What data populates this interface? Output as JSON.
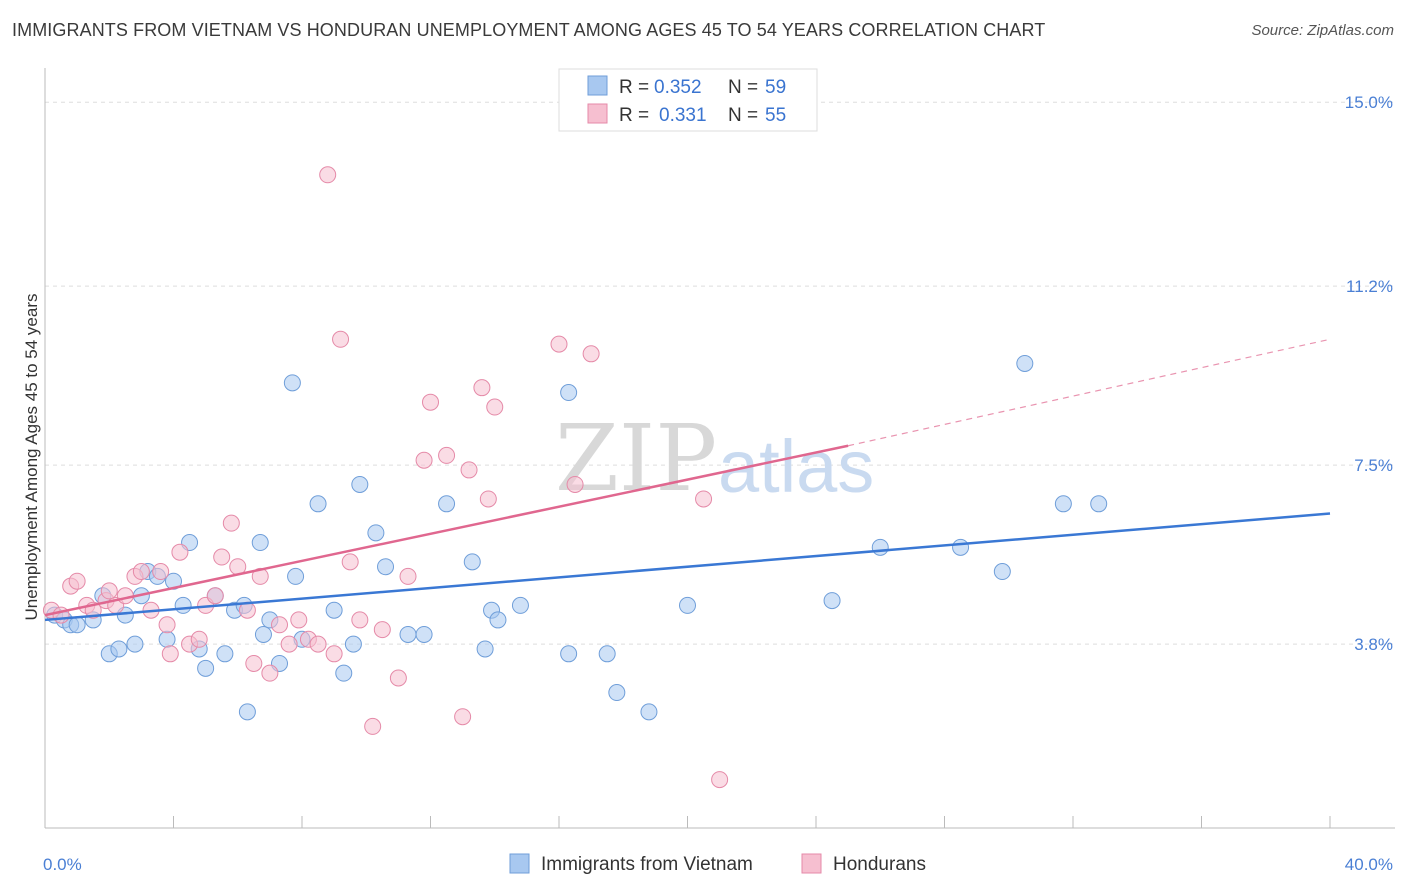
{
  "header": {
    "title": "IMMIGRANTS FROM VIETNAM VS HONDURAN UNEMPLOYMENT AMONG AGES 45 TO 54 YEARS CORRELATION CHART",
    "source": "Source: ZipAtlas.com"
  },
  "watermark": {
    "zip": "ZIP",
    "atlas": "atlas"
  },
  "legend": {
    "r_label": "R =",
    "n_label": "N =",
    "rows": [
      {
        "name": "Immigrants from Vietnam",
        "r": "0.352",
        "n": "59",
        "color": "#a8c8f0",
        "stroke": "#6f9ed9"
      },
      {
        "name": "Hondurans",
        "r": "0.331",
        "n": "55",
        "color": "#f6bfd0",
        "stroke": "#e58aa8"
      }
    ]
  },
  "chart_data": {
    "type": "scatter",
    "ylabel": "Unemployment Among Ages 45 to 54 years",
    "xlabel": "",
    "xlim": [
      0,
      40
    ],
    "ylim": [
      0,
      15.5
    ],
    "x_tick_labels": [
      "0.0%",
      "40.0%"
    ],
    "y_ticks": [
      {
        "value": 3.8,
        "label": "3.8%"
      },
      {
        "value": 7.5,
        "label": "7.5%"
      },
      {
        "value": 11.2,
        "label": "11.2%"
      },
      {
        "value": 15.0,
        "label": "15.0%"
      }
    ],
    "grid": true,
    "series": [
      {
        "name": "Immigrants from Vietnam",
        "color": "#a8c8f0",
        "stroke": "#6f9ed9",
        "trend": {
          "x0": 0,
          "y0": 4.3,
          "x1": 40,
          "y1": 6.5,
          "dashed_from": null,
          "color": "#3a78d4"
        },
        "points": [
          [
            0.3,
            4.4
          ],
          [
            0.6,
            4.3
          ],
          [
            0.8,
            4.2
          ],
          [
            1.0,
            4.2
          ],
          [
            1.5,
            4.3
          ],
          [
            1.8,
            4.8
          ],
          [
            2.0,
            3.6
          ],
          [
            2.3,
            3.7
          ],
          [
            2.5,
            4.4
          ],
          [
            2.8,
            3.8
          ],
          [
            3.0,
            4.8
          ],
          [
            3.2,
            5.3
          ],
          [
            3.5,
            5.2
          ],
          [
            3.8,
            3.9
          ],
          [
            4.0,
            5.1
          ],
          [
            4.3,
            4.6
          ],
          [
            4.5,
            5.9
          ],
          [
            4.8,
            3.7
          ],
          [
            5.0,
            3.3
          ],
          [
            5.3,
            4.8
          ],
          [
            5.6,
            3.6
          ],
          [
            5.9,
            4.5
          ],
          [
            6.2,
            4.6
          ],
          [
            6.3,
            2.4
          ],
          [
            6.7,
            5.9
          ],
          [
            6.8,
            4.0
          ],
          [
            7.0,
            4.3
          ],
          [
            7.3,
            3.4
          ],
          [
            7.7,
            9.2
          ],
          [
            7.8,
            5.2
          ],
          [
            8.0,
            3.9
          ],
          [
            8.5,
            6.7
          ],
          [
            9.0,
            4.5
          ],
          [
            9.3,
            3.2
          ],
          [
            9.6,
            3.8
          ],
          [
            9.8,
            7.1
          ],
          [
            10.3,
            6.1
          ],
          [
            10.6,
            5.4
          ],
          [
            11.3,
            4.0
          ],
          [
            11.8,
            4.0
          ],
          [
            12.5,
            6.7
          ],
          [
            13.3,
            5.5
          ],
          [
            13.7,
            3.7
          ],
          [
            13.9,
            4.5
          ],
          [
            14.1,
            4.3
          ],
          [
            14.8,
            4.6
          ],
          [
            16.3,
            9.0
          ],
          [
            16.3,
            3.6
          ],
          [
            17.5,
            3.6
          ],
          [
            17.8,
            2.8
          ],
          [
            18.8,
            2.4
          ],
          [
            20.0,
            4.6
          ],
          [
            24.5,
            4.7
          ],
          [
            26.0,
            5.8
          ],
          [
            28.5,
            5.8
          ],
          [
            29.8,
            5.3
          ],
          [
            30.5,
            9.6
          ],
          [
            31.7,
            6.7
          ],
          [
            32.8,
            6.7
          ]
        ]
      },
      {
        "name": "Hondurans",
        "color": "#f6bfd0",
        "stroke": "#e58aa8",
        "trend": {
          "x0": 0,
          "y0": 4.4,
          "x1": 25.0,
          "y1": 7.9,
          "dashed_to": 40,
          "dashed_y": 10.1,
          "color": "#e0678f"
        },
        "points": [
          [
            0.2,
            4.5
          ],
          [
            0.5,
            4.4
          ],
          [
            0.8,
            5.0
          ],
          [
            1.0,
            5.1
          ],
          [
            1.3,
            4.6
          ],
          [
            1.5,
            4.5
          ],
          [
            1.9,
            4.7
          ],
          [
            2.2,
            4.6
          ],
          [
            2.5,
            4.8
          ],
          [
            2.8,
            5.2
          ],
          [
            3.0,
            5.3
          ],
          [
            3.3,
            4.5
          ],
          [
            3.6,
            5.3
          ],
          [
            3.8,
            4.2
          ],
          [
            3.9,
            3.6
          ],
          [
            4.2,
            5.7
          ],
          [
            4.5,
            3.8
          ],
          [
            4.8,
            3.9
          ],
          [
            5.0,
            4.6
          ],
          [
            5.3,
            4.8
          ],
          [
            5.5,
            5.6
          ],
          [
            5.8,
            6.3
          ],
          [
            6.0,
            5.4
          ],
          [
            6.3,
            4.5
          ],
          [
            6.5,
            3.4
          ],
          [
            6.7,
            5.2
          ],
          [
            7.0,
            3.2
          ],
          [
            7.3,
            4.2
          ],
          [
            7.6,
            3.8
          ],
          [
            7.9,
            4.3
          ],
          [
            8.2,
            3.9
          ],
          [
            8.5,
            3.8
          ],
          [
            8.8,
            13.5
          ],
          [
            9.2,
            10.1
          ],
          [
            9.5,
            5.5
          ],
          [
            9.8,
            4.3
          ],
          [
            10.2,
            2.1
          ],
          [
            10.5,
            4.1
          ],
          [
            11.0,
            3.1
          ],
          [
            11.3,
            5.2
          ],
          [
            11.8,
            7.6
          ],
          [
            12.0,
            8.8
          ],
          [
            12.5,
            7.7
          ],
          [
            13.0,
            2.3
          ],
          [
            13.2,
            7.4
          ],
          [
            13.6,
            9.1
          ],
          [
            13.8,
            6.8
          ],
          [
            14.0,
            8.7
          ],
          [
            16.0,
            10.0
          ],
          [
            16.5,
            7.1
          ],
          [
            17.0,
            9.8
          ],
          [
            20.5,
            6.8
          ],
          [
            21.0,
            1.0
          ],
          [
            9.0,
            3.6
          ],
          [
            2.0,
            4.9
          ]
        ]
      }
    ]
  }
}
